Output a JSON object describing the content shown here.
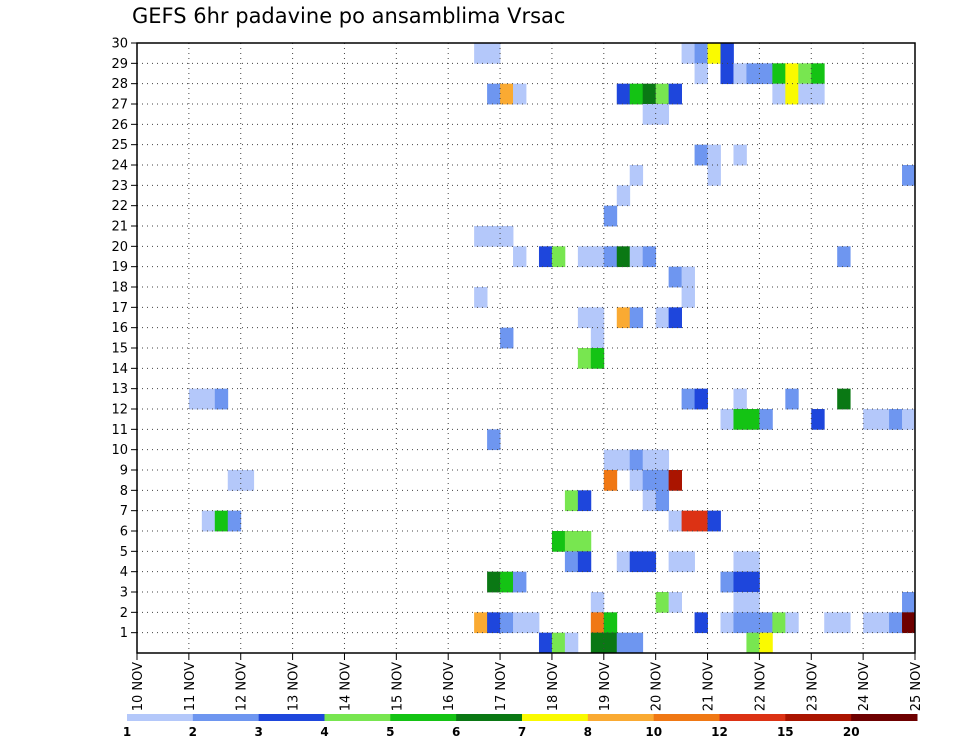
{
  "title": "GEFS 6hr padavine po ansamblima Vrsac",
  "colors": {
    "1": "#b4c8fa",
    "2": "#6e96f0",
    "3": "#1e46dc",
    "4": "#78e650",
    "5": "#14c314",
    "6": "#0a7814",
    "7": "#fafa00",
    "8": "#faaa32",
    "10": "#f07814",
    "12": "#dc3214",
    "15": "#aa1400",
    "20": "#6e0000"
  },
  "chart_data": {
    "type": "heatmap",
    "title": "GEFS 6hr padavine po ansamblima Vrsac",
    "x_tick_labels": [
      "10 NOV",
      "11 NOV",
      "12 NOV",
      "13 NOV",
      "14 NOV",
      "15 NOV",
      "16 NOV",
      "17 NOV",
      "18 NOV",
      "19 NOV",
      "20 NOV",
      "21 NOV",
      "22 NOV",
      "23 NOV",
      "24 NOV",
      "25 NOV"
    ],
    "y_tick_labels": [
      "1",
      "2",
      "3",
      "4",
      "5",
      "6",
      "7",
      "8",
      "9",
      "10",
      "11",
      "12",
      "13",
      "14",
      "15",
      "16",
      "17",
      "18",
      "19",
      "20",
      "21",
      "22",
      "23",
      "24",
      "25",
      "26",
      "27",
      "28",
      "29",
      "30"
    ],
    "x_range": [
      "10 NOV",
      "25 NOV"
    ],
    "y_range": [
      0,
      30
    ],
    "time_step_hours": 6,
    "grid": "dotted",
    "legend_levels": [
      1,
      2,
      3,
      4,
      5,
      6,
      7,
      8,
      10,
      12,
      15,
      20
    ],
    "legend_placement": "bottom",
    "cells": [
      {
        "t": "16 NOV 12",
        "m": 30,
        "v": 1
      },
      {
        "t": "16 NOV 18",
        "m": 30,
        "v": 1
      },
      {
        "t": "20 NOV 12",
        "m": 30,
        "v": 1
      },
      {
        "t": "20 NOV 18",
        "m": 30,
        "v": 2
      },
      {
        "t": "21 NOV 00",
        "m": 30,
        "v": 7
      },
      {
        "t": "21 NOV 06",
        "m": 30,
        "v": 3
      },
      {
        "t": "20 NOV 18",
        "m": 29,
        "v": 1
      },
      {
        "t": "21 NOV 06",
        "m": 29,
        "v": 3
      },
      {
        "t": "21 NOV 12",
        "m": 29,
        "v": 1
      },
      {
        "t": "21 NOV 18",
        "m": 29,
        "v": 2
      },
      {
        "t": "22 NOV 00",
        "m": 29,
        "v": 2
      },
      {
        "t": "22 NOV 06",
        "m": 29,
        "v": 5
      },
      {
        "t": "22 NOV 12",
        "m": 29,
        "v": 7
      },
      {
        "t": "22 NOV 18",
        "m": 29,
        "v": 4
      },
      {
        "t": "23 NOV 00",
        "m": 29,
        "v": 5
      },
      {
        "t": "16 NOV 18",
        "m": 28,
        "v": 2
      },
      {
        "t": "17 NOV 00",
        "m": 28,
        "v": 8
      },
      {
        "t": "17 NOV 06",
        "m": 28,
        "v": 1
      },
      {
        "t": "19 NOV 06",
        "m": 28,
        "v": 3
      },
      {
        "t": "19 NOV 12",
        "m": 28,
        "v": 5
      },
      {
        "t": "19 NOV 18",
        "m": 28,
        "v": 6
      },
      {
        "t": "20 NOV 00",
        "m": 28,
        "v": 4
      },
      {
        "t": "20 NOV 06",
        "m": 28,
        "v": 3
      },
      {
        "t": "22 NOV 06",
        "m": 28,
        "v": 1
      },
      {
        "t": "22 NOV 12",
        "m": 28,
        "v": 7
      },
      {
        "t": "22 NOV 18",
        "m": 28,
        "v": 1
      },
      {
        "t": "23 NOV 00",
        "m": 28,
        "v": 1
      },
      {
        "t": "19 NOV 18",
        "m": 27,
        "v": 1
      },
      {
        "t": "20 NOV 00",
        "m": 27,
        "v": 1
      },
      {
        "t": "20 NOV 18",
        "m": 25,
        "v": 2
      },
      {
        "t": "21 NOV 00",
        "m": 25,
        "v": 1
      },
      {
        "t": "21 NOV 12",
        "m": 25,
        "v": 1
      },
      {
        "t": "19 NOV 12",
        "m": 24,
        "v": 1
      },
      {
        "t": "21 NOV 00",
        "m": 24,
        "v": 1
      },
      {
        "t": "24 NOV 18",
        "m": 24,
        "v": 2
      },
      {
        "t": "19 NOV 06",
        "m": 23,
        "v": 1
      },
      {
        "t": "19 NOV 00",
        "m": 22,
        "v": 2
      },
      {
        "t": "16 NOV 12",
        "m": 21,
        "v": 1
      },
      {
        "t": "16 NOV 18",
        "m": 21,
        "v": 1
      },
      {
        "t": "17 NOV 00",
        "m": 21,
        "v": 1
      },
      {
        "t": "17 NOV 06",
        "m": 20,
        "v": 1
      },
      {
        "t": "17 NOV 18",
        "m": 20,
        "v": 3
      },
      {
        "t": "18 NOV 00",
        "m": 20,
        "v": 4
      },
      {
        "t": "18 NOV 12",
        "m": 20,
        "v": 1
      },
      {
        "t": "18 NOV 18",
        "m": 20,
        "v": 1
      },
      {
        "t": "19 NOV 00",
        "m": 20,
        "v": 2
      },
      {
        "t": "19 NOV 06",
        "m": 20,
        "v": 6
      },
      {
        "t": "19 NOV 12",
        "m": 20,
        "v": 1
      },
      {
        "t": "19 NOV 18",
        "m": 20,
        "v": 2
      },
      {
        "t": "23 NOV 12",
        "m": 20,
        "v": 2
      },
      {
        "t": "20 NOV 06",
        "m": 19,
        "v": 2
      },
      {
        "t": "20 NOV 12",
        "m": 19,
        "v": 1
      },
      {
        "t": "16 NOV 12",
        "m": 18,
        "v": 1
      },
      {
        "t": "20 NOV 12",
        "m": 18,
        "v": 1
      },
      {
        "t": "18 NOV 12",
        "m": 17,
        "v": 1
      },
      {
        "t": "18 NOV 18",
        "m": 17,
        "v": 1
      },
      {
        "t": "19 NOV 06",
        "m": 17,
        "v": 8
      },
      {
        "t": "19 NOV 12",
        "m": 17,
        "v": 2
      },
      {
        "t": "20 NOV 00",
        "m": 17,
        "v": 1
      },
      {
        "t": "20 NOV 06",
        "m": 17,
        "v": 3
      },
      {
        "t": "17 NOV 00",
        "m": 16,
        "v": 2
      },
      {
        "t": "18 NOV 18",
        "m": 16,
        "v": 1
      },
      {
        "t": "18 NOV 12",
        "m": 15,
        "v": 4
      },
      {
        "t": "18 NOV 18",
        "m": 15,
        "v": 5
      },
      {
        "t": "11 NOV 00",
        "m": 13,
        "v": 1
      },
      {
        "t": "11 NOV 06",
        "m": 13,
        "v": 1
      },
      {
        "t": "11 NOV 12",
        "m": 13,
        "v": 2
      },
      {
        "t": "20 NOV 12",
        "m": 13,
        "v": 2
      },
      {
        "t": "20 NOV 18",
        "m": 13,
        "v": 3
      },
      {
        "t": "21 NOV 12",
        "m": 13,
        "v": 1
      },
      {
        "t": "22 NOV 12",
        "m": 13,
        "v": 2
      },
      {
        "t": "23 NOV 12",
        "m": 13,
        "v": 6
      },
      {
        "t": "21 NOV 06",
        "m": 12,
        "v": 1
      },
      {
        "t": "21 NOV 12",
        "m": 12,
        "v": 5
      },
      {
        "t": "21 NOV 18",
        "m": 12,
        "v": 5
      },
      {
        "t": "22 NOV 00",
        "m": 12,
        "v": 2
      },
      {
        "t": "23 NOV 00",
        "m": 12,
        "v": 3
      },
      {
        "t": "24 NOV 00",
        "m": 12,
        "v": 1
      },
      {
        "t": "24 NOV 06",
        "m": 12,
        "v": 1
      },
      {
        "t": "24 NOV 12",
        "m": 12,
        "v": 2
      },
      {
        "t": "24 NOV 18",
        "m": 12,
        "v": 1
      },
      {
        "t": "16 NOV 18",
        "m": 11,
        "v": 2
      },
      {
        "t": "19 NOV 00",
        "m": 10,
        "v": 1
      },
      {
        "t": "19 NOV 06",
        "m": 10,
        "v": 1
      },
      {
        "t": "19 NOV 12",
        "m": 10,
        "v": 2
      },
      {
        "t": "19 NOV 18",
        "m": 10,
        "v": 1
      },
      {
        "t": "20 NOV 00",
        "m": 10,
        "v": 1
      },
      {
        "t": "11 NOV 18",
        "m": 9,
        "v": 1
      },
      {
        "t": "12 NOV 00",
        "m": 9,
        "v": 1
      },
      {
        "t": "19 NOV 00",
        "m": 9,
        "v": 10
      },
      {
        "t": "19 NOV 12",
        "m": 9,
        "v": 1
      },
      {
        "t": "19 NOV 18",
        "m": 9,
        "v": 2
      },
      {
        "t": "20 NOV 00",
        "m": 9,
        "v": 2
      },
      {
        "t": "20 NOV 06",
        "m": 9,
        "v": 15
      },
      {
        "t": "18 NOV 06",
        "m": 8,
        "v": 4
      },
      {
        "t": "18 NOV 12",
        "m": 8,
        "v": 3
      },
      {
        "t": "19 NOV 18",
        "m": 8,
        "v": 1
      },
      {
        "t": "20 NOV 00",
        "m": 8,
        "v": 2
      },
      {
        "t": "11 NOV 06",
        "m": 7,
        "v": 1
      },
      {
        "t": "11 NOV 12",
        "m": 7,
        "v": 5
      },
      {
        "t": "11 NOV 18",
        "m": 7,
        "v": 2
      },
      {
        "t": "20 NOV 06",
        "m": 7,
        "v": 1
      },
      {
        "t": "20 NOV 12",
        "m": 7,
        "v": 12
      },
      {
        "t": "20 NOV 18",
        "m": 7,
        "v": 12
      },
      {
        "t": "21 NOV 00",
        "m": 7,
        "v": 3
      },
      {
        "t": "18 NOV 00",
        "m": 6,
        "v": 5
      },
      {
        "t": "18 NOV 06",
        "m": 6,
        "v": 4
      },
      {
        "t": "18 NOV 12",
        "m": 6,
        "v": 4
      },
      {
        "t": "18 NOV 06",
        "m": 5,
        "v": 2
      },
      {
        "t": "18 NOV 12",
        "m": 5,
        "v": 3
      },
      {
        "t": "19 NOV 06",
        "m": 5,
        "v": 1
      },
      {
        "t": "19 NOV 12",
        "m": 5,
        "v": 3
      },
      {
        "t": "19 NOV 18",
        "m": 5,
        "v": 3
      },
      {
        "t": "20 NOV 06",
        "m": 5,
        "v": 1
      },
      {
        "t": "20 NOV 12",
        "m": 5,
        "v": 1
      },
      {
        "t": "21 NOV 12",
        "m": 5,
        "v": 1
      },
      {
        "t": "21 NOV 18",
        "m": 5,
        "v": 1
      },
      {
        "t": "16 NOV 18",
        "m": 4,
        "v": 6
      },
      {
        "t": "17 NOV 00",
        "m": 4,
        "v": 5
      },
      {
        "t": "17 NOV 06",
        "m": 4,
        "v": 2
      },
      {
        "t": "21 NOV 06",
        "m": 4,
        "v": 2
      },
      {
        "t": "21 NOV 12",
        "m": 4,
        "v": 3
      },
      {
        "t": "21 NOV 18",
        "m": 4,
        "v": 3
      },
      {
        "t": "18 NOV 18",
        "m": 3,
        "v": 1
      },
      {
        "t": "20 NOV 00",
        "m": 3,
        "v": 4
      },
      {
        "t": "20 NOV 06",
        "m": 3,
        "v": 1
      },
      {
        "t": "21 NOV 12",
        "m": 3,
        "v": 1
      },
      {
        "t": "21 NOV 18",
        "m": 3,
        "v": 1
      },
      {
        "t": "24 NOV 18",
        "m": 3,
        "v": 2
      },
      {
        "t": "16 NOV 12",
        "m": 2,
        "v": 8
      },
      {
        "t": "16 NOV 18",
        "m": 2,
        "v": 3
      },
      {
        "t": "17 NOV 00",
        "m": 2,
        "v": 2
      },
      {
        "t": "17 NOV 06",
        "m": 2,
        "v": 1
      },
      {
        "t": "17 NOV 12",
        "m": 2,
        "v": 1
      },
      {
        "t": "18 NOV 18",
        "m": 2,
        "v": 10
      },
      {
        "t": "19 NOV 00",
        "m": 2,
        "v": 5
      },
      {
        "t": "20 NOV 18",
        "m": 2,
        "v": 3
      },
      {
        "t": "21 NOV 06",
        "m": 2,
        "v": 1
      },
      {
        "t": "21 NOV 12",
        "m": 2,
        "v": 2
      },
      {
        "t": "21 NOV 18",
        "m": 2,
        "v": 2
      },
      {
        "t": "22 NOV 00",
        "m": 2,
        "v": 2
      },
      {
        "t": "22 NOV 06",
        "m": 2,
        "v": 4
      },
      {
        "t": "22 NOV 12",
        "m": 2,
        "v": 1
      },
      {
        "t": "23 NOV 06",
        "m": 2,
        "v": 1
      },
      {
        "t": "23 NOV 12",
        "m": 2,
        "v": 1
      },
      {
        "t": "24 NOV 00",
        "m": 2,
        "v": 1
      },
      {
        "t": "24 NOV 06",
        "m": 2,
        "v": 1
      },
      {
        "t": "24 NOV 12",
        "m": 2,
        "v": 2
      },
      {
        "t": "24 NOV 18",
        "m": 2,
        "v": 20
      },
      {
        "t": "17 NOV 18",
        "m": 1,
        "v": 3
      },
      {
        "t": "18 NOV 00",
        "m": 1,
        "v": 4
      },
      {
        "t": "18 NOV 06",
        "m": 1,
        "v": 1
      },
      {
        "t": "18 NOV 18",
        "m": 1,
        "v": 6
      },
      {
        "t": "19 NOV 00",
        "m": 1,
        "v": 6
      },
      {
        "t": "19 NOV 06",
        "m": 1,
        "v": 2
      },
      {
        "t": "19 NOV 12",
        "m": 1,
        "v": 2
      },
      {
        "t": "21 NOV 18",
        "m": 1,
        "v": 4
      },
      {
        "t": "22 NOV 00",
        "m": 1,
        "v": 7
      }
    ]
  }
}
